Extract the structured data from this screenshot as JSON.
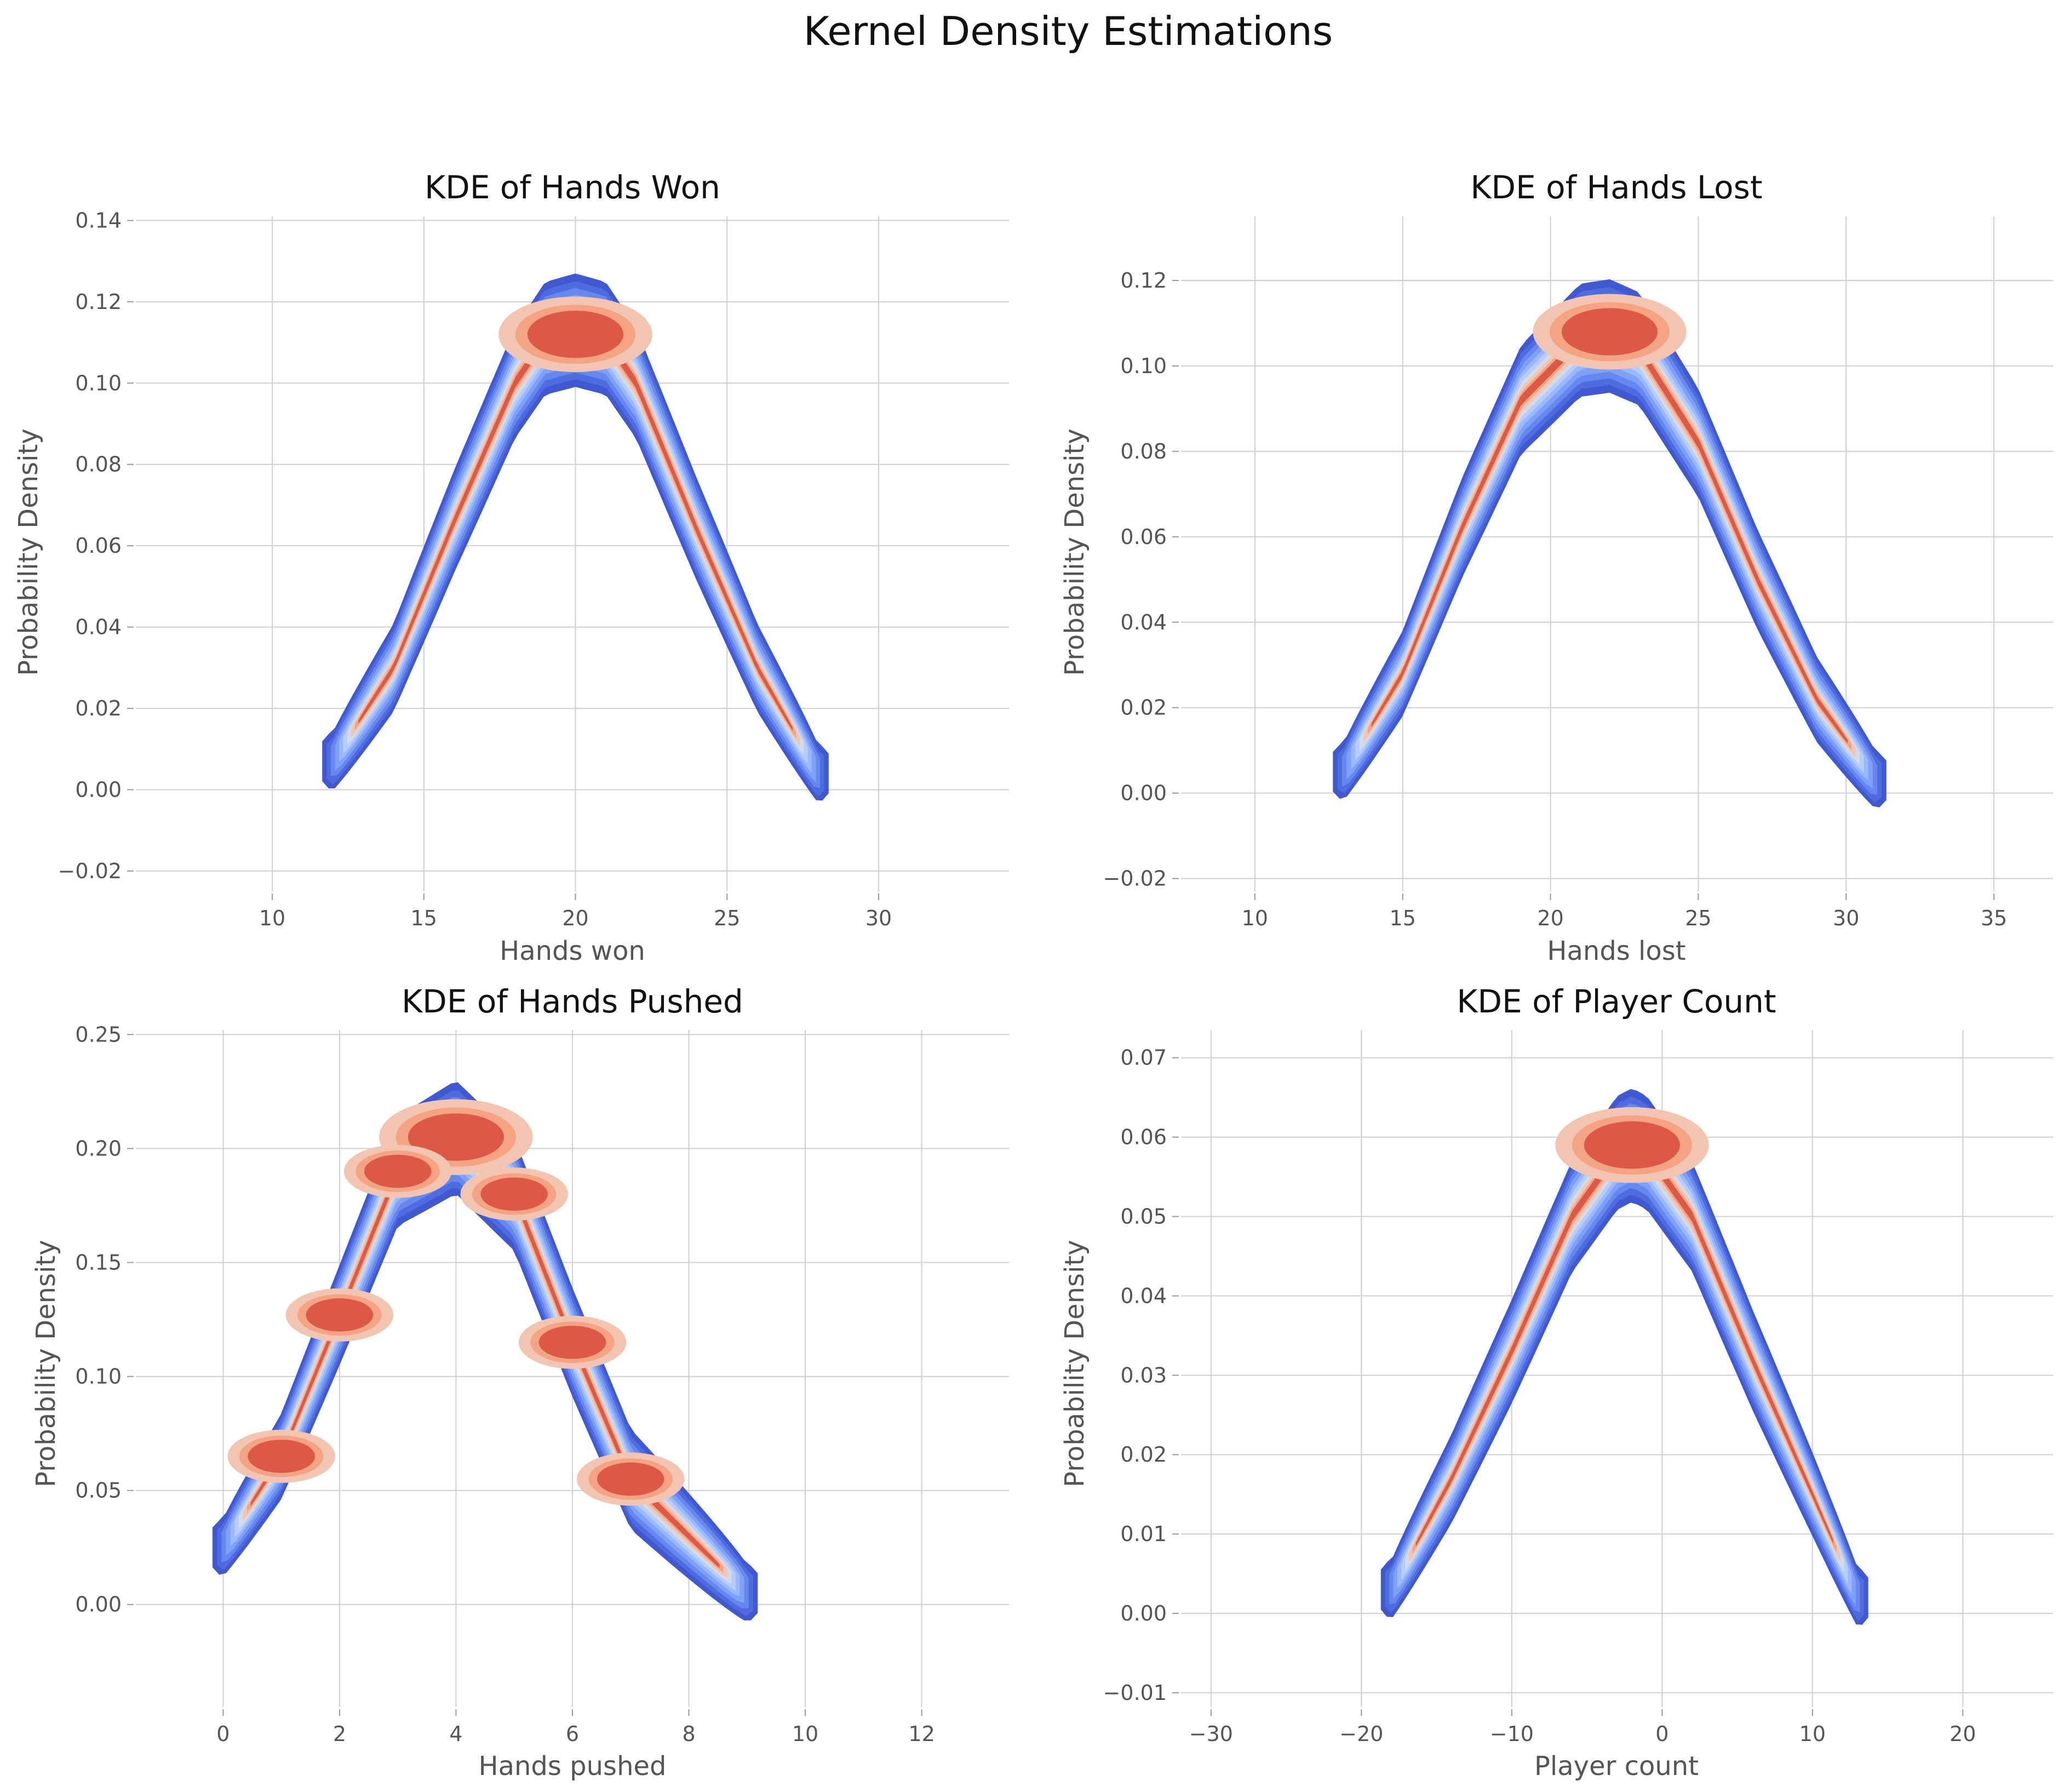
{
  "figure": {
    "title": "Kernel Density Estimations"
  },
  "colors": {
    "levels": [
      "#4059d0",
      "#4f6be0",
      "#6688ee",
      "#7ea0f7",
      "#9ab8fd",
      "#b6cdf9",
      "#d4dbe6",
      "#f2c5b0",
      "#f4a384",
      "#dc5a45"
    ],
    "grid": "#cfcfcf",
    "background": "#ffffff"
  },
  "chart_data": [
    {
      "type": "kde_filled_contour",
      "title": "KDE of Hands Won",
      "xlabel": "Hands won",
      "ylabel": "Probability Density",
      "xlim": [
        5.5,
        34.3
      ],
      "ylim": [
        -0.025,
        0.141
      ],
      "xticks": [
        10,
        15,
        20,
        25,
        30
      ],
      "xticklabels": [
        "10",
        "15",
        "20",
        "25",
        "30"
      ],
      "yticks": [
        -0.02,
        0.0,
        0.02,
        0.04,
        0.06,
        0.08,
        0.1,
        0.12,
        0.14
      ],
      "yticklabels": [
        "−0.02",
        "0.00",
        "0.02",
        "0.04",
        "0.06",
        "0.08",
        "0.10",
        "0.12",
        "0.14"
      ],
      "grid": true,
      "curve_x": [
        12,
        14,
        16,
        18,
        19,
        20,
        21,
        22,
        24,
        26,
        28
      ],
      "curve_y": [
        0.007,
        0.03,
        0.066,
        0.1,
        0.111,
        0.113,
        0.111,
        0.1,
        0.064,
        0.03,
        0.004
      ],
      "density_peaks": [
        [
          20,
          0.112
        ]
      ]
    },
    {
      "type": "kde_filled_contour",
      "title": "KDE of Hands Lost",
      "xlabel": "Hands lost",
      "ylabel": "Probability Density",
      "xlim": [
        7.5,
        37.0
      ],
      "ylim": [
        -0.023,
        0.135
      ],
      "xticks": [
        10,
        15,
        20,
        25,
        30,
        35
      ],
      "xticklabels": [
        "10",
        "15",
        "20",
        "25",
        "30",
        "35"
      ],
      "yticks": [
        -0.02,
        0.0,
        0.02,
        0.04,
        0.06,
        0.08,
        0.1,
        0.12
      ],
      "yticklabels": [
        "−0.02",
        "0.00",
        "0.02",
        "0.04",
        "0.06",
        "0.08",
        "0.10",
        "0.12"
      ],
      "grid": true,
      "curve_x": [
        13,
        15,
        17,
        19,
        21,
        22,
        23,
        25,
        27,
        29,
        31
      ],
      "curve_y": [
        0.005,
        0.028,
        0.062,
        0.092,
        0.106,
        0.107,
        0.104,
        0.082,
        0.05,
        0.022,
        0.003
      ],
      "density_peaks": [
        [
          22,
          0.108
        ]
      ]
    },
    {
      "type": "kde_filled_contour",
      "title": "KDE of Hands Pushed",
      "xlabel": "Hands pushed",
      "ylabel": "Probability Density",
      "xlim": [
        -1.5,
        13.5
      ],
      "ylim": [
        -0.045,
        0.252
      ],
      "xticks": [
        0,
        2,
        4,
        6,
        8,
        10,
        12
      ],
      "xticklabels": [
        "0",
        "2",
        "4",
        "6",
        "8",
        "10",
        "12"
      ],
      "yticks": [
        0.0,
        0.05,
        0.1,
        0.15,
        0.2,
        0.25
      ],
      "yticklabels": [
        "0.00",
        "0.05",
        "0.10",
        "0.15",
        "0.20",
        "0.25"
      ],
      "grid": true,
      "curve_x": [
        0,
        1,
        2,
        3,
        4,
        5,
        6,
        7,
        8,
        9
      ],
      "curve_y": [
        0.025,
        0.065,
        0.127,
        0.19,
        0.205,
        0.18,
        0.115,
        0.055,
        0.03,
        0.005
      ],
      "density_peaks": [
        [
          4,
          0.205
        ],
        [
          3,
          0.19
        ],
        [
          5,
          0.18
        ],
        [
          2,
          0.127
        ],
        [
          6,
          0.115
        ],
        [
          1,
          0.065
        ],
        [
          7,
          0.055
        ]
      ]
    },
    {
      "type": "kde_filled_contour",
      "title": "KDE of Player Count",
      "xlabel": "Player count",
      "ylabel": "Probability Density",
      "xlim": [
        -32.0,
        26.0
      ],
      "ylim": [
        -0.0118,
        0.0735
      ],
      "xticks": [
        -30,
        -20,
        -10,
        0,
        10,
        20
      ],
      "xticklabels": [
        "−30",
        "−20",
        "−10",
        "0",
        "10",
        "20"
      ],
      "yticks": [
        -0.01,
        0.0,
        0.01,
        0.02,
        0.03,
        0.04,
        0.05,
        0.06,
        0.07
      ],
      "yticklabels": [
        "−0.01",
        "0.00",
        "0.01",
        "0.02",
        "0.03",
        "0.04",
        "0.05",
        "0.06",
        "0.07"
      ],
      "grid": true,
      "curve_x": [
        -18,
        -14,
        -10,
        -6,
        -3,
        -2,
        -1,
        2,
        6,
        10,
        13
      ],
      "curve_y": [
        0.003,
        0.017,
        0.033,
        0.05,
        0.058,
        0.059,
        0.058,
        0.05,
        0.032,
        0.015,
        0.002
      ],
      "density_peaks": [
        [
          -2,
          0.059
        ]
      ]
    }
  ]
}
